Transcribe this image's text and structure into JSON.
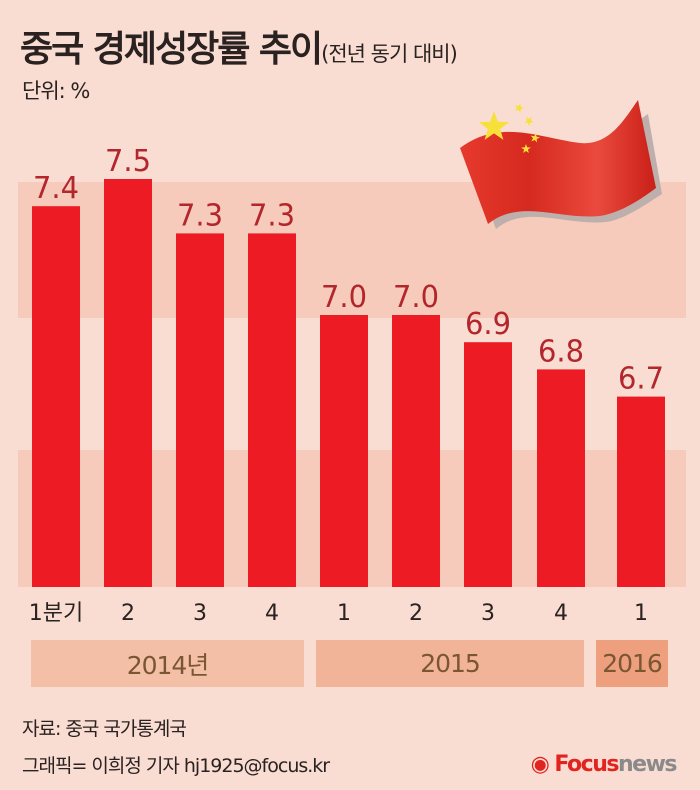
{
  "header": {
    "title": "중국 경제성장률 추이",
    "subtitle": "(전년 동기 대비)",
    "unit": "단위: %"
  },
  "chart_data": {
    "type": "bar",
    "title": "중국 경제성장률 추이",
    "subtitle": "(전년 동기 대비)",
    "ylabel": "단위: %",
    "categories": [
      "1분기",
      "2",
      "3",
      "4",
      "1",
      "2",
      "3",
      "4",
      "1"
    ],
    "groups": [
      {
        "label": "2014년",
        "count": 4,
        "color": "#f4bfa7"
      },
      {
        "label": "2015",
        "count": 4,
        "color": "#f2b498"
      },
      {
        "label": "2016",
        "count": 1,
        "color": "#ee9f7e"
      }
    ],
    "values": [
      7.4,
      7.5,
      7.3,
      7.3,
      7.0,
      7.0,
      6.9,
      6.8,
      6.7
    ],
    "value_labels": [
      "7.4",
      "7.5",
      "7.3",
      "7.3",
      "7.0",
      "7.0",
      "6.9",
      "6.8",
      "6.7"
    ],
    "ylim": [
      6.0,
      7.5
    ],
    "bar_color": "#ed1c24",
    "label_color": "#b3262c",
    "grid": false
  },
  "footer": {
    "source": "자료: 중국 국가통계국",
    "credit": "그래픽= 이희정 기자 hj1925@focus.kr",
    "logo_focus": "Focus",
    "logo_news": "news"
  },
  "decoration": {
    "flag": "china-flag-icon"
  }
}
